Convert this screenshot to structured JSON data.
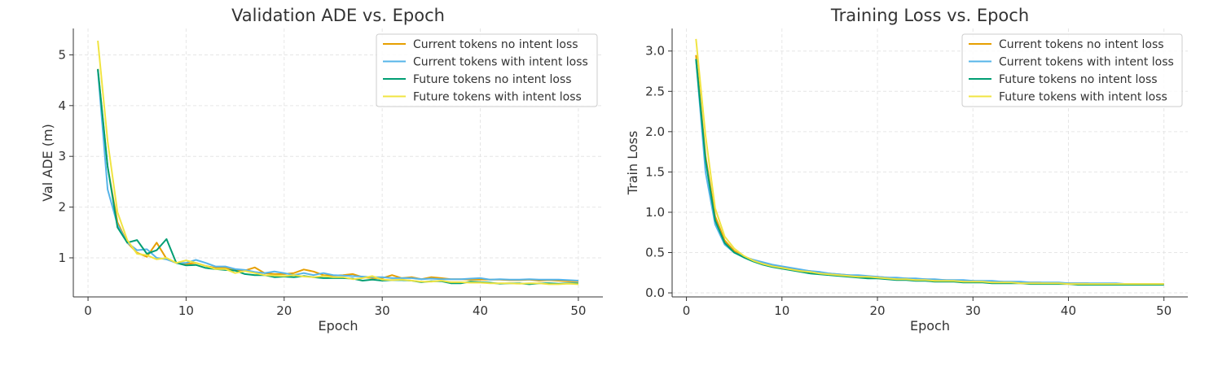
{
  "colors": {
    "orange": "#E69F00",
    "blue": "#56B4E9",
    "green": "#009E73",
    "yellow": "#F0E442"
  },
  "chart_data": [
    {
      "type": "line",
      "title": "Validation ADE vs. Epoch",
      "xlabel": "Epoch",
      "ylabel": "Val ADE (m)",
      "xlim": [
        -1.5,
        52.5
      ],
      "ylim": [
        0.23,
        5.52
      ],
      "xticks": [
        0,
        10,
        20,
        30,
        40,
        50
      ],
      "yticks": [
        1,
        2,
        3,
        4,
        5
      ],
      "grid": true,
      "legend": "top-right",
      "x": [
        1,
        2,
        3,
        4,
        5,
        6,
        7,
        8,
        9,
        10,
        11,
        12,
        13,
        14,
        15,
        16,
        17,
        18,
        19,
        20,
        21,
        22,
        23,
        24,
        25,
        26,
        27,
        28,
        29,
        30,
        31,
        32,
        33,
        34,
        35,
        36,
        37,
        38,
        39,
        40,
        41,
        42,
        43,
        44,
        45,
        46,
        47,
        48,
        49,
        50
      ],
      "series": [
        {
          "name": "Current tokens no intent loss",
          "color": "#E69F00",
          "values": [
            4.72,
            2.8,
            1.7,
            1.3,
            1.1,
            1.02,
            1.3,
            0.98,
            0.9,
            0.88,
            0.9,
            0.84,
            0.8,
            0.8,
            0.75,
            0.75,
            0.81,
            0.7,
            0.68,
            0.68,
            0.7,
            0.77,
            0.73,
            0.66,
            0.65,
            0.66,
            0.68,
            0.62,
            0.6,
            0.6,
            0.66,
            0.6,
            0.62,
            0.58,
            0.62,
            0.6,
            0.58,
            0.58,
            0.57,
            0.57,
            0.57,
            0.57,
            0.56,
            0.56,
            0.57,
            0.55,
            0.56,
            0.55,
            0.54,
            0.54
          ]
        },
        {
          "name": "Current tokens with intent loss",
          "color": "#56B4E9",
          "values": [
            4.7,
            2.35,
            1.65,
            1.3,
            1.15,
            1.17,
            1.0,
            0.97,
            0.9,
            0.9,
            0.96,
            0.9,
            0.83,
            0.83,
            0.78,
            0.76,
            0.72,
            0.7,
            0.73,
            0.7,
            0.66,
            0.7,
            0.66,
            0.7,
            0.66,
            0.65,
            0.64,
            0.63,
            0.62,
            0.62,
            0.6,
            0.6,
            0.6,
            0.58,
            0.59,
            0.58,
            0.58,
            0.58,
            0.59,
            0.6,
            0.57,
            0.58,
            0.57,
            0.57,
            0.58,
            0.57,
            0.57,
            0.57,
            0.56,
            0.55
          ]
        },
        {
          "name": "Future tokens no intent loss",
          "color": "#009E73",
          "values": [
            4.72,
            2.8,
            1.6,
            1.3,
            1.35,
            1.08,
            1.15,
            1.37,
            0.9,
            0.85,
            0.86,
            0.8,
            0.78,
            0.76,
            0.75,
            0.68,
            0.66,
            0.66,
            0.62,
            0.63,
            0.62,
            0.64,
            0.62,
            0.6,
            0.6,
            0.6,
            0.59,
            0.55,
            0.57,
            0.55,
            0.56,
            0.56,
            0.55,
            0.52,
            0.54,
            0.54,
            0.5,
            0.5,
            0.53,
            0.52,
            0.51,
            0.49,
            0.5,
            0.5,
            0.48,
            0.5,
            0.5,
            0.49,
            0.5,
            0.5
          ]
        },
        {
          "name": "Future tokens with intent loss",
          "color": "#F0E442",
          "values": [
            5.28,
            3.3,
            1.9,
            1.35,
            1.08,
            1.05,
            0.97,
            1.0,
            0.9,
            0.95,
            0.9,
            0.84,
            0.78,
            0.78,
            0.7,
            0.74,
            0.7,
            0.66,
            0.65,
            0.64,
            0.66,
            0.63,
            0.62,
            0.64,
            0.62,
            0.62,
            0.58,
            0.6,
            0.64,
            0.57,
            0.56,
            0.57,
            0.55,
            0.53,
            0.53,
            0.55,
            0.52,
            0.52,
            0.51,
            0.51,
            0.5,
            0.5,
            0.5,
            0.49,
            0.5,
            0.5,
            0.48,
            0.48,
            0.49,
            0.48
          ]
        }
      ]
    },
    {
      "type": "line",
      "title": "Training Loss vs. Epoch",
      "xlabel": "Epoch",
      "ylabel": "Train Loss",
      "xlim": [
        -1.5,
        52.5
      ],
      "ylim": [
        -0.05,
        3.28
      ],
      "xticks": [
        0,
        10,
        20,
        30,
        40,
        50
      ],
      "yticks": [
        "0.0",
        "0.5",
        "1.0",
        "1.5",
        "2.0",
        "2.5",
        "3.0"
      ],
      "grid": true,
      "legend": "top-right",
      "x": [
        1,
        2,
        3,
        4,
        5,
        6,
        7,
        8,
        9,
        10,
        11,
        12,
        13,
        14,
        15,
        16,
        17,
        18,
        19,
        20,
        21,
        22,
        23,
        24,
        25,
        26,
        27,
        28,
        29,
        30,
        31,
        32,
        33,
        34,
        35,
        36,
        37,
        38,
        39,
        40,
        41,
        42,
        43,
        44,
        45,
        46,
        47,
        48,
        49,
        50
      ],
      "series": [
        {
          "name": "Current tokens no intent loss",
          "color": "#E69F00",
          "values": [
            2.95,
            1.7,
            0.95,
            0.65,
            0.52,
            0.45,
            0.41,
            0.37,
            0.34,
            0.32,
            0.3,
            0.28,
            0.27,
            0.25,
            0.24,
            0.23,
            0.22,
            0.21,
            0.2,
            0.2,
            0.19,
            0.18,
            0.18,
            0.17,
            0.17,
            0.16,
            0.16,
            0.15,
            0.15,
            0.15,
            0.14,
            0.14,
            0.14,
            0.13,
            0.13,
            0.13,
            0.13,
            0.12,
            0.12,
            0.12,
            0.12,
            0.12,
            0.11,
            0.11,
            0.11,
            0.11,
            0.11,
            0.11,
            0.11,
            0.11
          ]
        },
        {
          "name": "Current tokens with intent loss",
          "color": "#56B4E9",
          "values": [
            2.9,
            1.5,
            0.85,
            0.6,
            0.5,
            0.45,
            0.41,
            0.38,
            0.35,
            0.33,
            0.31,
            0.29,
            0.27,
            0.26,
            0.24,
            0.23,
            0.22,
            0.22,
            0.21,
            0.2,
            0.19,
            0.19,
            0.18,
            0.18,
            0.17,
            0.17,
            0.16,
            0.16,
            0.16,
            0.15,
            0.15,
            0.15,
            0.14,
            0.14,
            0.14,
            0.13,
            0.13,
            0.13,
            0.13,
            0.12,
            0.12,
            0.12,
            0.12,
            0.12,
            0.12,
            0.11,
            0.11,
            0.11,
            0.11,
            0.11
          ]
        },
        {
          "name": "Future tokens no intent loss",
          "color": "#009E73",
          "values": [
            2.9,
            1.65,
            0.9,
            0.62,
            0.5,
            0.44,
            0.39,
            0.35,
            0.32,
            0.3,
            0.28,
            0.26,
            0.24,
            0.23,
            0.22,
            0.21,
            0.2,
            0.19,
            0.18,
            0.18,
            0.17,
            0.16,
            0.16,
            0.15,
            0.15,
            0.14,
            0.14,
            0.14,
            0.13,
            0.13,
            0.13,
            0.12,
            0.12,
            0.12,
            0.12,
            0.11,
            0.11,
            0.11,
            0.11,
            0.11,
            0.1,
            0.1,
            0.1,
            0.1,
            0.1,
            0.1,
            0.1,
            0.1,
            0.1,
            0.1
          ]
        },
        {
          "name": "Future tokens with intent loss",
          "color": "#F0E442",
          "values": [
            3.15,
            1.95,
            1.05,
            0.7,
            0.55,
            0.46,
            0.4,
            0.36,
            0.33,
            0.31,
            0.29,
            0.27,
            0.26,
            0.24,
            0.23,
            0.22,
            0.21,
            0.2,
            0.2,
            0.19,
            0.18,
            0.17,
            0.17,
            0.16,
            0.16,
            0.15,
            0.15,
            0.15,
            0.14,
            0.14,
            0.14,
            0.13,
            0.13,
            0.13,
            0.12,
            0.12,
            0.12,
            0.12,
            0.12,
            0.11,
            0.11,
            0.11,
            0.11,
            0.11,
            0.11,
            0.11,
            0.11,
            0.11,
            0.11,
            0.11
          ]
        }
      ]
    }
  ]
}
